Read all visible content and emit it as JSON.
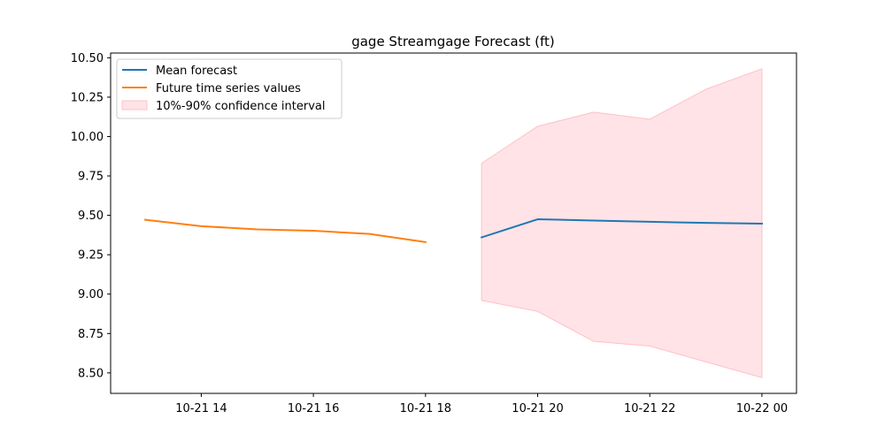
{
  "chart_data": {
    "type": "line",
    "title": "gage Streamgage Forecast (ft)",
    "xlabel": "",
    "ylabel": "",
    "x_ticks": [
      "10-21 14",
      "10-21 16",
      "10-21 18",
      "10-21 20",
      "10-21 22",
      "10-22 00"
    ],
    "y_ticks": [
      "8.50",
      "8.75",
      "9.00",
      "9.25",
      "9.50",
      "9.75",
      "10.00",
      "10.25",
      "10.50"
    ],
    "xlim": [
      "2023-10-21 12:23",
      "2023-10-22 00:37"
    ],
    "ylim": [
      8.37,
      10.53
    ],
    "grid": false,
    "legend_position": "top-left",
    "series": [
      {
        "name": "Mean forecast",
        "color": "#1f77b4",
        "x": [
          "2023-10-21 19:00",
          "2023-10-21 20:00",
          "2023-10-21 21:00",
          "2023-10-21 22:00",
          "2023-10-21 23:00",
          "2023-10-22 00:00"
        ],
        "values": [
          9.36,
          9.475,
          9.467,
          9.459,
          9.452,
          9.447
        ]
      },
      {
        "name": "Future time series values",
        "color": "#ff7f0e",
        "x": [
          "2023-10-21 13:00",
          "2023-10-21 14:00",
          "2023-10-21 15:00",
          "2023-10-21 16:00",
          "2023-10-21 17:00",
          "2023-10-21 18:00"
        ],
        "values": [
          9.472,
          9.431,
          9.411,
          9.402,
          9.382,
          9.33
        ]
      }
    ],
    "bands": [
      {
        "name": "10%-90% confidence interval",
        "color": "#ffc0c8",
        "x": [
          "2023-10-21 19:00",
          "2023-10-21 20:00",
          "2023-10-21 21:00",
          "2023-10-21 22:00",
          "2023-10-21 23:00",
          "2023-10-22 00:00"
        ],
        "lower": [
          8.96,
          8.89,
          8.7,
          8.67,
          8.57,
          8.47
        ],
        "upper": [
          9.83,
          10.065,
          10.155,
          10.11,
          10.3,
          10.43
        ]
      }
    ]
  }
}
